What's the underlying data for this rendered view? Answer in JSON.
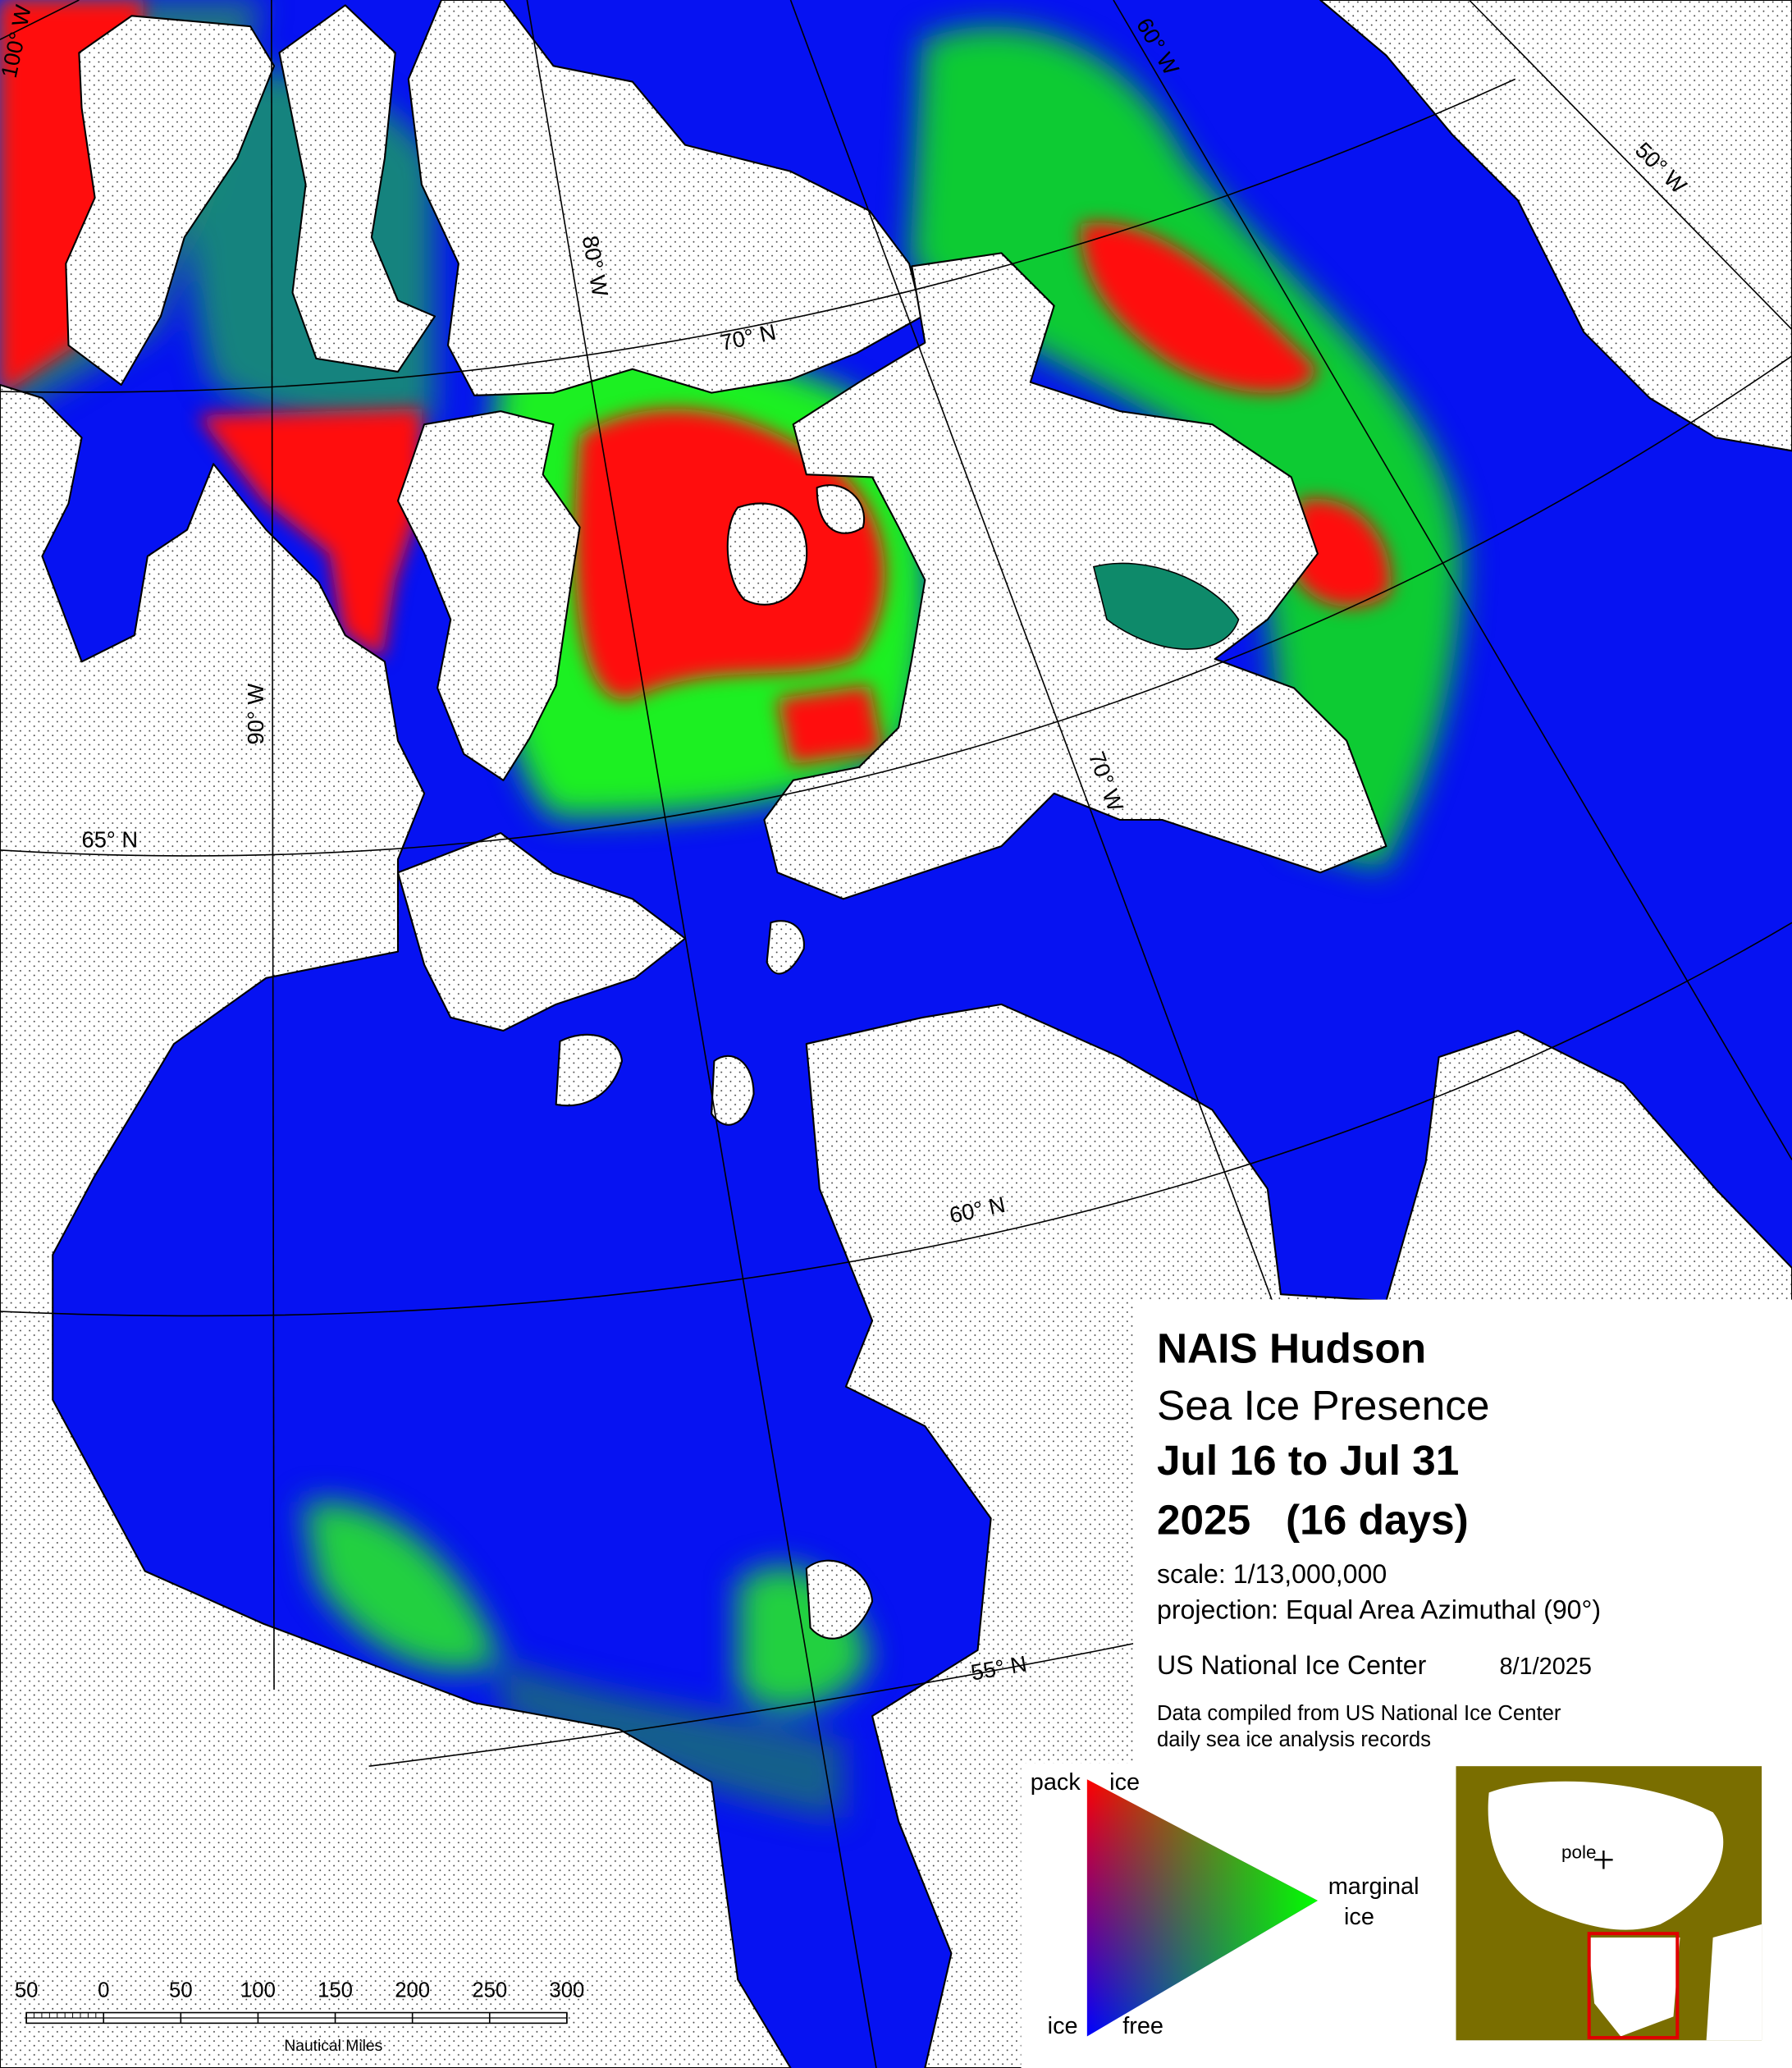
{
  "map": {
    "meridians": [
      "100° W",
      "90° W",
      "80° W",
      "70° W",
      "60° W",
      "50° W"
    ],
    "parallels": [
      "70° N",
      "65° N",
      "60° N",
      "55° N"
    ]
  },
  "title_block": {
    "title": "NAIS Hudson",
    "subtitle": "Sea Ice Presence",
    "period": "Jul 16 to Jul 31",
    "year": "2025   (16 days)",
    "scale": "scale: 1/13,000,000",
    "projection": "projection: Equal Area Azimuthal (90°)",
    "agency": "US National Ice Center",
    "date": "8/1/2025",
    "note_line1": "Data compiled from US National Ice Center",
    "note_line2": "daily sea ice analysis records"
  },
  "legend": {
    "pack_ice": [
      "pack",
      "ice"
    ],
    "marginal_ice": [
      "marginal",
      "ice"
    ],
    "ice_free": [
      "ice",
      "free"
    ]
  },
  "inset": {
    "pole_label": "pole"
  },
  "scale_bar": {
    "labels": [
      50,
      0,
      50,
      100,
      150,
      200,
      250,
      300
    ],
    "unit": "Nautical Miles"
  }
}
